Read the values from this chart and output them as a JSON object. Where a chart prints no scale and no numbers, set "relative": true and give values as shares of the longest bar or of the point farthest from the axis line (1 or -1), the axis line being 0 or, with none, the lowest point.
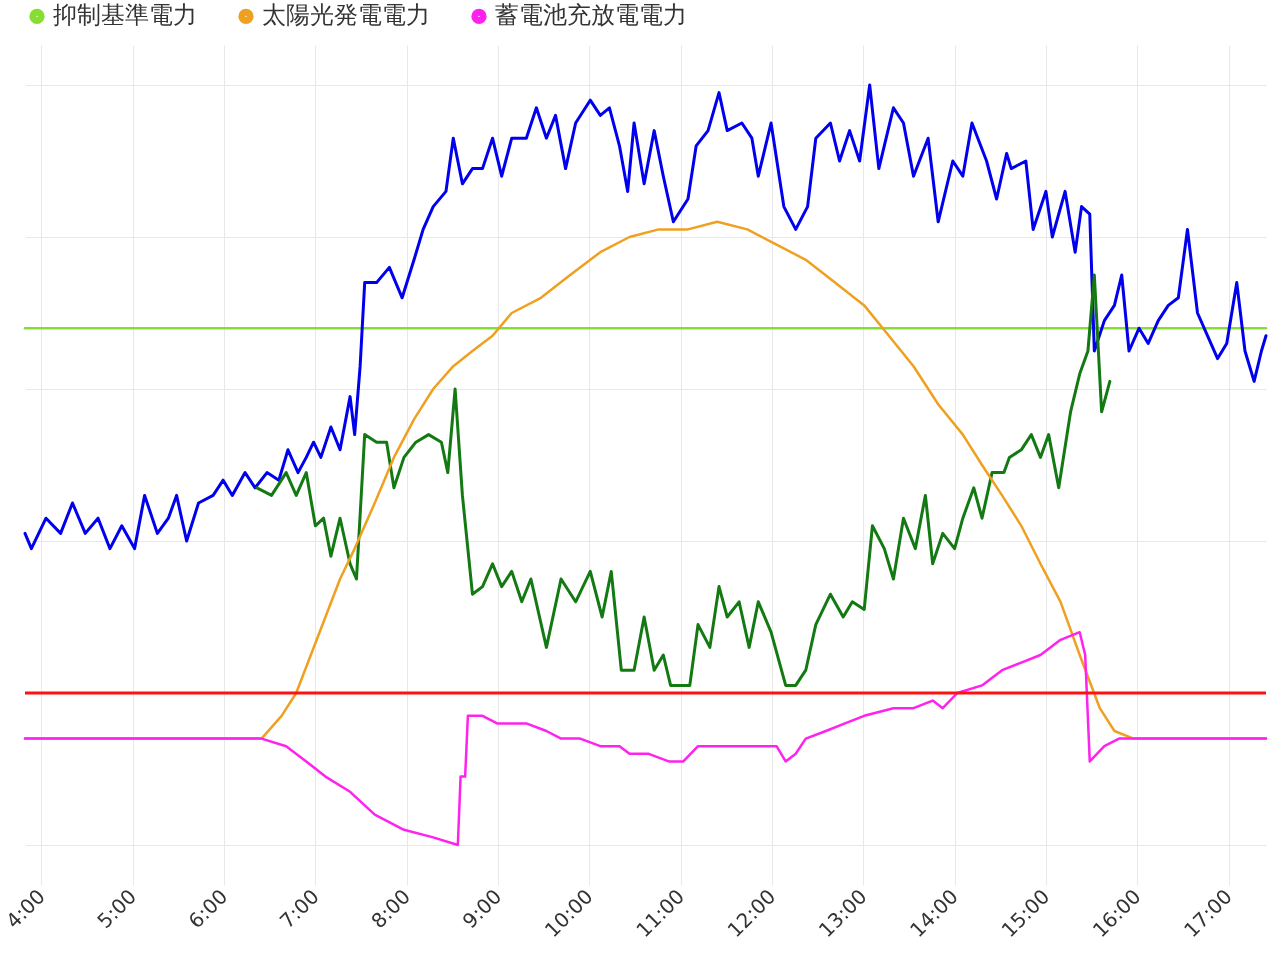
{
  "chart_data": {
    "type": "line",
    "relative": true,
    "grid": true,
    "legend": "top left",
    "xlim": [
      3.82,
      17.41
    ],
    "xticks": [
      {
        "value": 4,
        "label": "4:00"
      },
      {
        "value": 5,
        "label": "5:00"
      },
      {
        "value": 6,
        "label": "6:00"
      },
      {
        "value": 7,
        "label": "7:00"
      },
      {
        "value": 8,
        "label": "8:00"
      },
      {
        "value": 9,
        "label": "9:00"
      },
      {
        "value": 10,
        "label": "10:00"
      },
      {
        "value": 11,
        "label": "11:00"
      },
      {
        "value": 12,
        "label": "12:00"
      },
      {
        "value": 13,
        "label": "13:00"
      },
      {
        "value": 14,
        "label": "14:00"
      },
      {
        "value": 15,
        "label": "15:00"
      },
      {
        "value": 16,
        "label": "16:00"
      },
      {
        "value": 17,
        "label": "17:00"
      }
    ],
    "series": [
      {
        "name": "抑制基準電力",
        "color": "#88dd33",
        "x": [
          3.82,
          17.41
        ],
        "values": [
          0.68,
          0.68
        ]
      },
      {
        "color": "#0000ee",
        "x": [
          3.82,
          3.89,
          4.05,
          4.21,
          4.34,
          4.48,
          4.62,
          4.75,
          4.88,
          5.02,
          5.13,
          5.27,
          5.39,
          5.48,
          5.59,
          5.72,
          5.88,
          5.99,
          6.09,
          6.23,
          6.34,
          6.47,
          6.6,
          6.7,
          6.81,
          6.9,
          6.98,
          7.06,
          7.17,
          7.27,
          7.38,
          7.43,
          7.49,
          7.54,
          7.67,
          7.81,
          7.95,
          8.08,
          8.18,
          8.29,
          8.43,
          8.51,
          8.61,
          8.72,
          8.83,
          8.94,
          9.04,
          9.15,
          9.31,
          9.42,
          9.53,
          9.63,
          9.74,
          9.85,
          10.01,
          10.12,
          10.22,
          10.33,
          10.42,
          10.49,
          10.6,
          10.71,
          10.81,
          10.92,
          11.08,
          11.17,
          11.3,
          11.42,
          11.51,
          11.67,
          11.78,
          11.85,
          11.99,
          12.13,
          12.26,
          12.39,
          12.48,
          12.64,
          12.74,
          12.85,
          12.96,
          13.07,
          13.17,
          13.33,
          13.44,
          13.55,
          13.71,
          13.82,
          13.98,
          14.09,
          14.19,
          14.35,
          14.46,
          14.57,
          14.62,
          14.78,
          14.86,
          15.0,
          15.07,
          15.21,
          15.32,
          15.39,
          15.48,
          15.53,
          15.64,
          15.75,
          15.83,
          15.91,
          16.02,
          16.12,
          16.23,
          16.34,
          16.45,
          16.55,
          16.66,
          16.77,
          16.88,
          16.98,
          17.09,
          17.18,
          17.28,
          17.36,
          17.41
        ],
        "values": [
          0.41,
          0.39,
          0.43,
          0.41,
          0.45,
          0.41,
          0.43,
          0.39,
          0.42,
          0.39,
          0.46,
          0.41,
          0.43,
          0.46,
          0.4,
          0.45,
          0.46,
          0.48,
          0.46,
          0.49,
          0.47,
          0.49,
          0.48,
          0.52,
          0.49,
          0.51,
          0.53,
          0.51,
          0.55,
          0.52,
          0.59,
          0.54,
          0.63,
          0.74,
          0.74,
          0.76,
          0.72,
          0.77,
          0.81,
          0.84,
          0.86,
          0.93,
          0.87,
          0.89,
          0.89,
          0.93,
          0.88,
          0.93,
          0.93,
          0.97,
          0.93,
          0.96,
          0.89,
          0.95,
          0.98,
          0.96,
          0.97,
          0.92,
          0.86,
          0.95,
          0.87,
          0.94,
          0.88,
          0.82,
          0.85,
          0.92,
          0.94,
          0.99,
          0.94,
          0.95,
          0.93,
          0.88,
          0.95,
          0.84,
          0.81,
          0.84,
          0.93,
          0.95,
          0.9,
          0.94,
          0.9,
          1.0,
          0.89,
          0.97,
          0.95,
          0.88,
          0.93,
          0.82,
          0.9,
          0.88,
          0.95,
          0.9,
          0.85,
          0.91,
          0.89,
          0.9,
          0.81,
          0.86,
          0.8,
          0.86,
          0.78,
          0.84,
          0.83,
          0.65,
          0.69,
          0.71,
          0.75,
          0.65,
          0.68,
          0.66,
          0.69,
          0.71,
          0.72,
          0.81,
          0.7,
          0.67,
          0.64,
          0.66,
          0.74,
          0.65,
          0.61,
          0.65,
          0.67
        ]
      },
      {
        "color": "#137a13",
        "x": [
          6.36,
          6.52,
          6.68,
          6.79,
          6.9,
          7.0,
          7.09,
          7.17,
          7.27,
          7.38,
          7.45,
          7.54,
          7.67,
          7.78,
          7.86,
          7.97,
          8.1,
          8.24,
          8.38,
          8.45,
          8.53,
          8.61,
          8.72,
          8.83,
          8.94,
          9.04,
          9.15,
          9.26,
          9.36,
          9.53,
          9.69,
          9.85,
          10.01,
          10.14,
          10.24,
          10.35,
          10.49,
          10.6,
          10.71,
          10.81,
          10.89,
          11.03,
          11.1,
          11.19,
          11.32,
          11.42,
          11.51,
          11.64,
          11.75,
          11.85,
          11.99,
          12.15,
          12.26,
          12.37,
          12.48,
          12.64,
          12.78,
          12.88,
          13.01,
          13.1,
          13.23,
          13.33,
          13.44,
          13.57,
          13.68,
          13.76,
          13.87,
          14.0,
          14.09,
          14.21,
          14.3,
          14.41,
          14.54,
          14.6,
          14.73,
          14.84,
          14.94,
          15.03,
          15.14,
          15.27,
          15.37,
          15.46,
          15.53,
          15.61,
          15.7
        ],
        "values": [
          0.47,
          0.46,
          0.49,
          0.46,
          0.49,
          0.42,
          0.43,
          0.38,
          0.43,
          0.37,
          0.35,
          0.54,
          0.53,
          0.53,
          0.47,
          0.51,
          0.53,
          0.54,
          0.53,
          0.49,
          0.6,
          0.46,
          0.33,
          0.34,
          0.37,
          0.34,
          0.36,
          0.32,
          0.35,
          0.26,
          0.35,
          0.32,
          0.36,
          0.3,
          0.36,
          0.23,
          0.23,
          0.3,
          0.23,
          0.25,
          0.21,
          0.21,
          0.21,
          0.29,
          0.26,
          0.34,
          0.3,
          0.32,
          0.26,
          0.32,
          0.28,
          0.21,
          0.21,
          0.23,
          0.29,
          0.33,
          0.3,
          0.32,
          0.31,
          0.42,
          0.39,
          0.35,
          0.43,
          0.39,
          0.46,
          0.37,
          0.41,
          0.39,
          0.43,
          0.47,
          0.43,
          0.49,
          0.49,
          0.51,
          0.52,
          0.54,
          0.51,
          0.54,
          0.47,
          0.57,
          0.62,
          0.65,
          0.75,
          0.57,
          0.61
        ]
      },
      {
        "name": "太陽光発電電力",
        "color": "#f0a020",
        "x": [
          3.82,
          6.41,
          6.63,
          6.79,
          6.95,
          7.11,
          7.27,
          7.43,
          7.65,
          7.86,
          8.08,
          8.29,
          8.51,
          8.72,
          8.94,
          9.15,
          9.47,
          9.79,
          10.12,
          10.44,
          10.76,
          11.08,
          11.4,
          11.73,
          12.05,
          12.37,
          12.69,
          13.01,
          13.28,
          13.55,
          13.82,
          14.09,
          14.3,
          14.52,
          14.73,
          14.94,
          15.16,
          15.37,
          15.59,
          15.75,
          15.96,
          17.41
        ],
        "values": [
          0.14,
          0.14,
          0.17,
          0.2,
          0.25,
          0.3,
          0.35,
          0.39,
          0.45,
          0.51,
          0.56,
          0.6,
          0.63,
          0.65,
          0.67,
          0.7,
          0.72,
          0.75,
          0.78,
          0.8,
          0.81,
          0.81,
          0.82,
          0.81,
          0.79,
          0.77,
          0.74,
          0.71,
          0.67,
          0.63,
          0.58,
          0.54,
          0.5,
          0.46,
          0.42,
          0.37,
          0.32,
          0.25,
          0.18,
          0.15,
          0.14,
          0.14
        ]
      },
      {
        "name": "蓄電池充放電電力",
        "color": "#ff22ee",
        "x": [
          3.82,
          6.41,
          6.68,
          6.9,
          7.11,
          7.38,
          7.65,
          7.97,
          8.29,
          8.56,
          8.59,
          8.64,
          8.67,
          8.83,
          8.99,
          9.15,
          9.31,
          9.53,
          9.69,
          9.9,
          10.12,
          10.33,
          10.44,
          10.65,
          10.87,
          11.03,
          11.19,
          11.62,
          12.05,
          12.15,
          12.26,
          12.37,
          12.59,
          12.8,
          13.01,
          13.33,
          13.55,
          13.76,
          13.87,
          14.03,
          14.3,
          14.52,
          14.73,
          14.94,
          15.16,
          15.37,
          15.43,
          15.48,
          15.64,
          15.8,
          16.02,
          17.41
        ],
        "values": [
          0.14,
          0.14,
          0.13,
          0.11,
          0.09,
          0.07,
          0.04,
          0.02,
          0.01,
          0,
          0.09,
          0.09,
          0.17,
          0.17,
          0.16,
          0.16,
          0.16,
          0.15,
          0.14,
          0.14,
          0.13,
          0.13,
          0.12,
          0.12,
          0.11,
          0.11,
          0.13,
          0.13,
          0.13,
          0.11,
          0.12,
          0.14,
          0.15,
          0.16,
          0.17,
          0.18,
          0.18,
          0.19,
          0.18,
          0.2,
          0.21,
          0.23,
          0.24,
          0.25,
          0.27,
          0.28,
          0.25,
          0.11,
          0.13,
          0.14,
          0.14,
          0.14
        ]
      }
    ],
    "ref_lines": [
      {
        "axis": "y",
        "value": 0.2,
        "color": "#ff1111"
      }
    ]
  }
}
